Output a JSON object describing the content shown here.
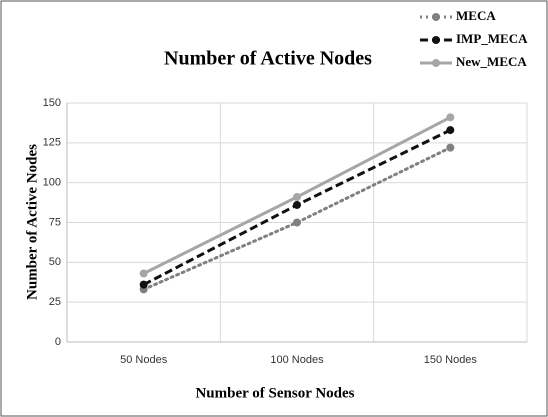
{
  "chart_data": {
    "type": "line",
    "title": "Number of  Active Nodes",
    "x_label": "Number of  Sensor Nodes",
    "y_label": "Number of  Active Nodes",
    "categories": [
      "50 Nodes",
      "100 Nodes",
      "150 Nodes"
    ],
    "series": [
      {
        "name": "MECA",
        "color": "#808080",
        "style": "dotted",
        "values": [
          33,
          75,
          122
        ]
      },
      {
        "name": "IMP_MECA",
        "color": "#111111",
        "style": "dashed",
        "values": [
          36,
          86,
          133
        ]
      },
      {
        "name": "New_MECA",
        "color": "#a6a6a6",
        "style": "solid",
        "values": [
          43,
          91,
          141
        ]
      }
    ],
    "ylim": [
      0,
      150
    ],
    "yticks": [
      0,
      25,
      50,
      75,
      100,
      125,
      150
    ],
    "grid": true,
    "legend": "top-right"
  }
}
